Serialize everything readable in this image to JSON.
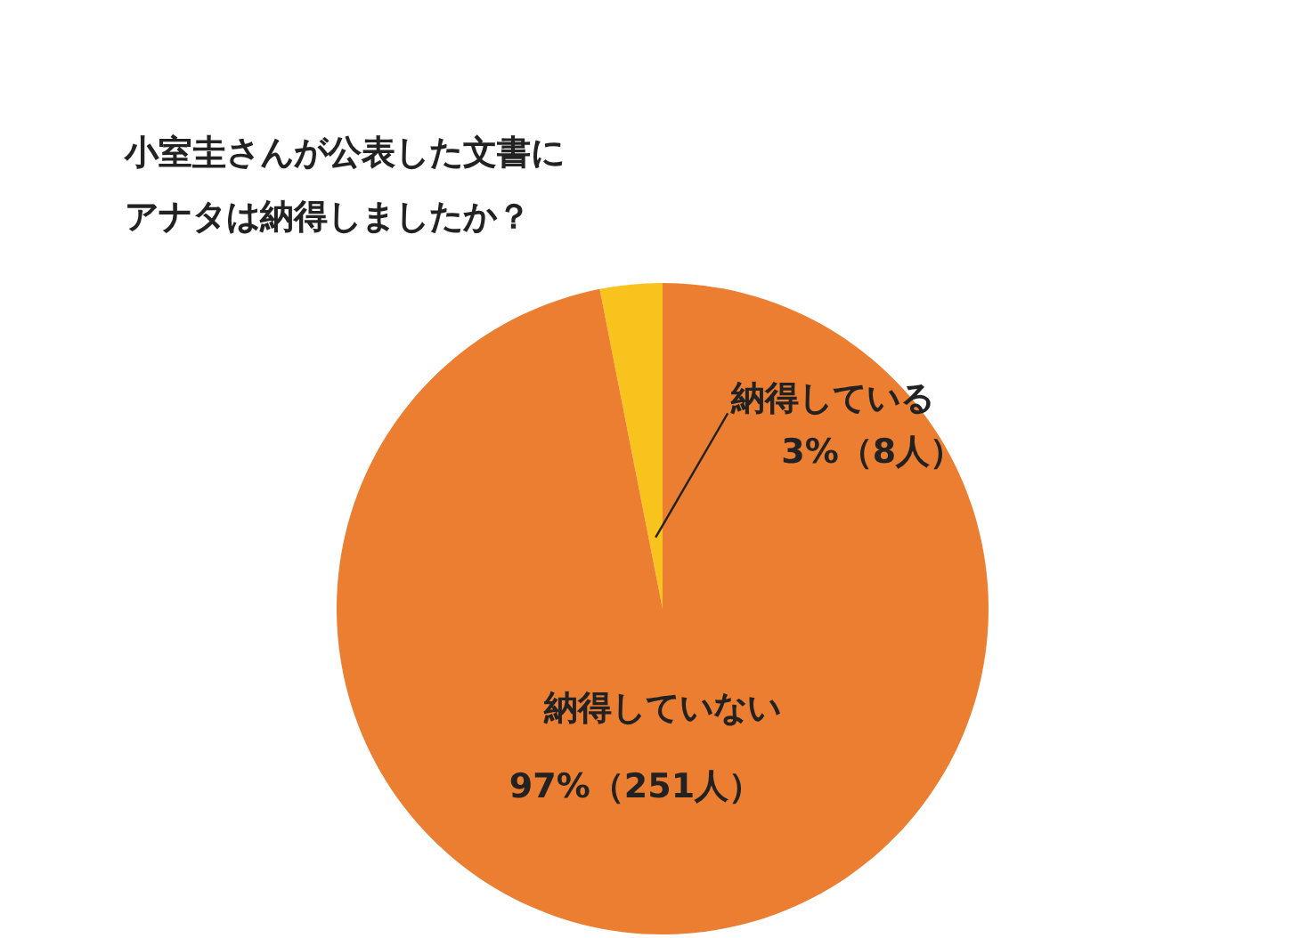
{
  "chart_data": {
    "type": "pie",
    "title": "小室圭さんが公表した文書にアナタは納得しましたか？",
    "categories": [
      "納得している",
      "納得していない"
    ],
    "values": [
      8,
      251
    ],
    "colors": [
      "#f7c31c",
      "#ec7e32"
    ],
    "value_labels": [
      "3%（8人）",
      "97%（251人）"
    ],
    "legend": false
  }
}
